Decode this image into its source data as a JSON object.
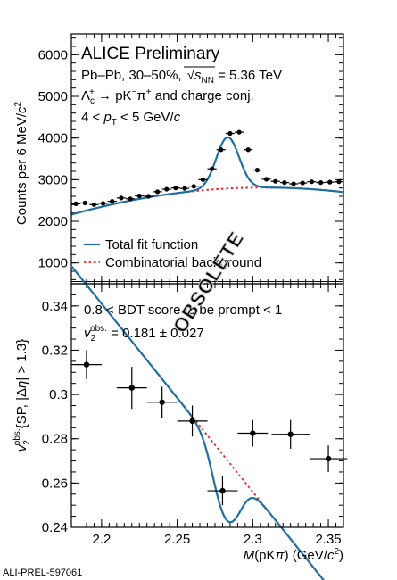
{
  "chart_data": [
    {
      "type": "scatter",
      "title": "ALICE Preliminary",
      "annotations": [
        "Pb–Pb, 30–50%, √sNN = 5.36 TeV",
        "Λc+ → pK−π+ and charge conj.",
        "4 < pT < 5 GeV/c"
      ],
      "title_parts": {
        "system": "Pb–Pb, 30–50%,",
        "sqrt": "s",
        "sub": "NN",
        "energy": " = 5.36 TeV",
        "decay_a": "Λ",
        "decay_sub": "c",
        "decay_sup": "+",
        "decay_b": " → pK",
        "decay_sup2": "−",
        "decay_c": "π",
        "decay_sup3": "+",
        "decay_d": " and charge conj.",
        "pt_a": "4 < ",
        "pt_p": "p",
        "pt_sub": "T",
        "pt_b": " < 5 GeV/",
        "pt_c": "c"
      },
      "ylabel": "Counts per 6 MeV/c²",
      "ylabel_parts": {
        "a": "Counts per 6 MeV/",
        "c": "c",
        "sup": "2"
      },
      "xlim": [
        2.18,
        2.36
      ],
      "ylim": [
        500,
        6500
      ],
      "yticks": [
        1000,
        2000,
        3000,
        4000,
        5000,
        6000
      ],
      "ytick_labels": [
        "1000",
        "2000",
        "3000",
        "4000",
        "5000",
        "6000"
      ],
      "x": [
        2.183,
        2.189,
        2.195,
        2.201,
        2.207,
        2.213,
        2.219,
        2.225,
        2.231,
        2.237,
        2.243,
        2.249,
        2.255,
        2.261,
        2.267,
        2.273,
        2.279,
        2.285,
        2.291,
        2.297,
        2.303,
        2.309,
        2.315,
        2.321,
        2.327,
        2.333,
        2.339,
        2.345,
        2.351,
        2.357
      ],
      "y": [
        2420,
        2440,
        2400,
        2430,
        2480,
        2560,
        2540,
        2610,
        2600,
        2710,
        2770,
        2800,
        2790,
        2840,
        3000,
        3260,
        3720,
        4110,
        4140,
        3720,
        3230,
        3010,
        2960,
        2930,
        2900,
        2920,
        2950,
        2930,
        2940,
        2950
      ],
      "yerr": 45,
      "fit_params": {
        "a": 2754,
        "b": 3000,
        "c": -40000,
        "x0": 2.27,
        "amp": 1230,
        "mu": 2.2834,
        "sigma": 0.0075
      },
      "series": [
        {
          "name": "Total fit function",
          "color": "#1f6fa3",
          "style": "solid"
        },
        {
          "name": "Combinatorial background",
          "color": "#ee2222",
          "style": "dotted"
        }
      ],
      "legend_position": "bottom-left"
    },
    {
      "type": "scatter",
      "title": "0.8 < BDT score to be prompt < 1",
      "annotation": "v2obs. = 0.181 ± 0.027",
      "annotation_parts": {
        "v": "v",
        "sub": "2",
        "sup": "obs.",
        "rest": " = 0.181 ± 0.027"
      },
      "ylabel": "v2obs.{SP, |Δη| > 1.3}",
      "ylabel_parts": {
        "v": "v",
        "sub": "2",
        "sup": "obs.",
        "a": "{SP, |Δ",
        "eta": "η",
        "b": "| > 1.3}"
      },
      "xlabel": "M(pKπ) (GeV/c²)",
      "xlabel_parts": {
        "m": "M",
        "a": "(pK",
        "pi": "π",
        "b": ") (GeV/",
        "c": "c",
        "sup": "2",
        "d": ")"
      },
      "xlim": [
        2.18,
        2.36
      ],
      "ylim": [
        0.24,
        0.35
      ],
      "xticks": [
        2.2,
        2.25,
        2.3,
        2.35
      ],
      "xtick_labels": [
        "2.2",
        "2.25",
        "2.3",
        "2.35"
      ],
      "yticks": [
        0.24,
        0.26,
        0.28,
        0.3,
        0.32,
        0.34
      ],
      "ytick_labels": [
        "0.24",
        "0.26",
        "0.28",
        "0.3",
        "0.32",
        "0.34"
      ],
      "x": [
        2.19,
        2.22,
        2.24,
        2.26,
        2.28,
        2.3,
        2.325,
        2.35
      ],
      "xerr": [
        0.01,
        0.01,
        0.01,
        0.01,
        0.01,
        0.01,
        0.0125,
        0.0125
      ],
      "y": [
        0.3135,
        0.303,
        0.2965,
        0.288,
        0.2565,
        0.2825,
        0.282,
        0.271
      ],
      "yerr": [
        0.0065,
        0.0095,
        0.007,
        0.007,
        0.0065,
        0.006,
        0.0065,
        0.006
      ],
      "fit_params": {
        "bkg0": 0.2985,
        "slope": -0.85,
        "x0": 2.25,
        "v2sig": 0.181,
        "mu": 2.2834,
        "sigma": 0.0075
      }
    }
  ],
  "watermark": "OBSOLETE",
  "footer": "ALI-PREL-597061"
}
